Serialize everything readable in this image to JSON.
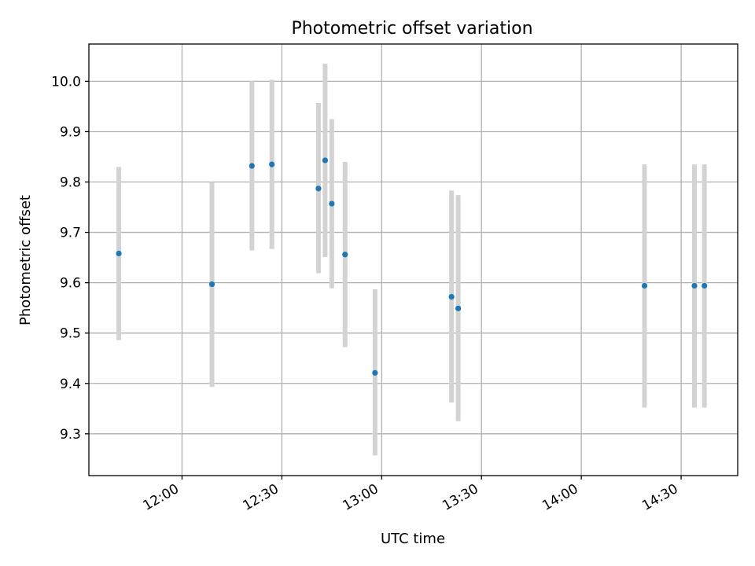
{
  "chart_data": {
    "type": "scatter",
    "title": "Photometric offset variation",
    "xlabel": "UTC time",
    "ylabel": "Photometric offset",
    "x_axis": "time",
    "xlim": [
      "11:32",
      "14:47"
    ],
    "ylim": [
      9.217,
      10.074
    ],
    "xticks": [
      "12:00",
      "12:30",
      "13:00",
      "13:30",
      "14:00",
      "14:30"
    ],
    "yticks": [
      9.3,
      9.4,
      9.5,
      9.6,
      9.7,
      9.8,
      9.9,
      10.0
    ],
    "ytick_labels": [
      "9.3",
      "9.4",
      "9.5",
      "9.6",
      "9.7",
      "9.8",
      "9.9",
      "10.0"
    ],
    "grid": true,
    "marker_color": "#1f77b4",
    "errorbar_color": "#d3d3d3",
    "points": [
      {
        "x": "11:41",
        "y": 9.658,
        "ymin": 9.486,
        "ymax": 9.83
      },
      {
        "x": "12:09",
        "y": 9.597,
        "ymin": 9.393,
        "ymax": 9.8
      },
      {
        "x": "12:21",
        "y": 9.832,
        "ymin": 9.664,
        "ymax": 10.0
      },
      {
        "x": "12:27",
        "y": 9.835,
        "ymin": 9.667,
        "ymax": 10.003
      },
      {
        "x": "12:41",
        "y": 9.787,
        "ymin": 9.619,
        "ymax": 9.957
      },
      {
        "x": "12:43",
        "y": 9.843,
        "ymin": 9.651,
        "ymax": 10.035
      },
      {
        "x": "12:45",
        "y": 9.757,
        "ymin": 9.589,
        "ymax": 9.925
      },
      {
        "x": "12:49",
        "y": 9.656,
        "ymin": 9.472,
        "ymax": 9.84
      },
      {
        "x": "12:58",
        "y": 9.421,
        "ymin": 9.257,
        "ymax": 9.587
      },
      {
        "x": "13:21",
        "y": 9.572,
        "ymin": 9.362,
        "ymax": 9.783
      },
      {
        "x": "13:23",
        "y": 9.549,
        "ymin": 9.325,
        "ymax": 9.774
      },
      {
        "x": "14:19",
        "y": 9.594,
        "ymin": 9.352,
        "ymax": 9.835
      },
      {
        "x": "14:34",
        "y": 9.594,
        "ymin": 9.352,
        "ymax": 9.835
      },
      {
        "x": "14:37",
        "y": 9.594,
        "ymin": 9.352,
        "ymax": 9.835
      }
    ]
  }
}
